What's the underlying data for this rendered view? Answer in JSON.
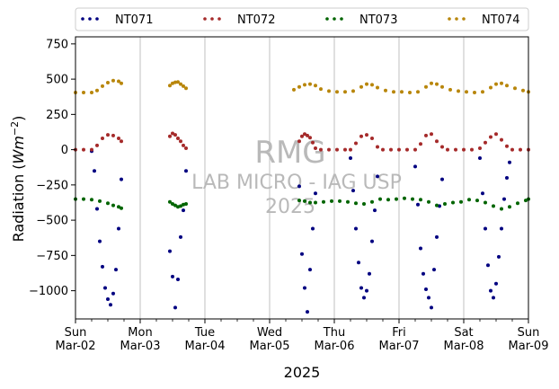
{
  "chart_data": {
    "type": "scatter",
    "xlabel": "2025",
    "ylabel": "Radiation (",
    "ylabel_unit": "Wm",
    "ylabel_exp": "−2",
    "ylabel_close": ")",
    "xlim": [
      "2025-03-02",
      "2025-03-09"
    ],
    "ylim": [
      -1200,
      800
    ],
    "yticks": [
      -1000,
      -750,
      -500,
      -250,
      0,
      250,
      500,
      750
    ],
    "ytick_labels": [
      "−1000",
      "−750",
      "−500",
      "−250",
      "0",
      "250",
      "500",
      "750"
    ],
    "xticks": [
      {
        "date": "2025-03-02",
        "day": "Sun",
        "label": "Mar-02"
      },
      {
        "date": "2025-03-03",
        "day": "Mon",
        "label": "Mar-03"
      },
      {
        "date": "2025-03-04",
        "day": "Tue",
        "label": "Mar-04"
      },
      {
        "date": "2025-03-05",
        "day": "Wed",
        "label": "Mar-05"
      },
      {
        "date": "2025-03-06",
        "day": "Thu",
        "label": "Mar-06"
      },
      {
        "date": "2025-03-07",
        "day": "Fri",
        "label": "Mar-07"
      },
      {
        "date": "2025-03-08",
        "day": "Sat",
        "label": "Mar-08"
      },
      {
        "date": "2025-03-09",
        "day": "Sun",
        "label": "Mar-09"
      }
    ],
    "grid": "vertical",
    "legend_position": "top, outside, horizontal",
    "watermark": [
      "RMG",
      "LAB MICRO - IAG USP",
      "2025"
    ],
    "series": [
      {
        "name": "NT071",
        "color": "#000080",
        "points": [
          [
            "2025-03-02 06:00",
            -10
          ],
          [
            "2025-03-02 07:00",
            -150
          ],
          [
            "2025-03-02 08:00",
            -420
          ],
          [
            "2025-03-02 09:00",
            -650
          ],
          [
            "2025-03-02 10:00",
            -830
          ],
          [
            "2025-03-02 11:00",
            -980
          ],
          [
            "2025-03-02 12:00",
            -1060
          ],
          [
            "2025-03-02 13:00",
            -1100
          ],
          [
            "2025-03-02 14:00",
            -1020
          ],
          [
            "2025-03-02 15:00",
            -850
          ],
          [
            "2025-03-02 16:00",
            -560
          ],
          [
            "2025-03-02 17:00",
            -210
          ],
          [
            "2025-03-03 11:00",
            -720
          ],
          [
            "2025-03-03 12:00",
            -900
          ],
          [
            "2025-03-03 13:00",
            -1120
          ],
          [
            "2025-03-03 14:00",
            -920
          ],
          [
            "2025-03-03 15:00",
            -620
          ],
          [
            "2025-03-03 16:00",
            -430
          ],
          [
            "2025-03-03 17:00",
            -150
          ],
          [
            "2025-03-05 11:00",
            -260
          ],
          [
            "2025-03-05 12:00",
            -740
          ],
          [
            "2025-03-05 13:00",
            -980
          ],
          [
            "2025-03-05 14:00",
            -1150
          ],
          [
            "2025-03-05 15:00",
            -850
          ],
          [
            "2025-03-05 16:00",
            -560
          ],
          [
            "2025-03-05 17:00",
            -310
          ],
          [
            "2025-03-06 06:00",
            -60
          ],
          [
            "2025-03-06 07:00",
            -290
          ],
          [
            "2025-03-06 08:00",
            -560
          ],
          [
            "2025-03-06 09:00",
            -800
          ],
          [
            "2025-03-06 10:00",
            -980
          ],
          [
            "2025-03-06 11:00",
            -1050
          ],
          [
            "2025-03-06 12:00",
            -1000
          ],
          [
            "2025-03-06 13:00",
            -880
          ],
          [
            "2025-03-06 14:00",
            -650
          ],
          [
            "2025-03-06 15:00",
            -430
          ],
          [
            "2025-03-06 16:00",
            -190
          ],
          [
            "2025-03-07 06:00",
            -120
          ],
          [
            "2025-03-07 07:00",
            -390
          ],
          [
            "2025-03-07 08:00",
            -700
          ],
          [
            "2025-03-07 09:00",
            -880
          ],
          [
            "2025-03-07 10:00",
            -990
          ],
          [
            "2025-03-07 11:00",
            -1050
          ],
          [
            "2025-03-07 12:00",
            -1120
          ],
          [
            "2025-03-07 13:00",
            -850
          ],
          [
            "2025-03-07 14:00",
            -620
          ],
          [
            "2025-03-07 15:00",
            -400
          ],
          [
            "2025-03-07 16:00",
            -210
          ],
          [
            "2025-03-08 06:00",
            -60
          ],
          [
            "2025-03-08 07:00",
            -310
          ],
          [
            "2025-03-08 08:00",
            -560
          ],
          [
            "2025-03-08 09:00",
            -820
          ],
          [
            "2025-03-08 10:00",
            -1000
          ],
          [
            "2025-03-08 11:00",
            -1050
          ],
          [
            "2025-03-08 12:00",
            -950
          ],
          [
            "2025-03-08 13:00",
            -760
          ],
          [
            "2025-03-08 14:00",
            -560
          ],
          [
            "2025-03-08 15:00",
            -350
          ],
          [
            "2025-03-08 16:00",
            -200
          ],
          [
            "2025-03-08 17:00",
            -90
          ]
        ]
      },
      {
        "name": "NT072",
        "color": "#a52a2a",
        "points": [
          [
            "2025-03-02 00:00",
            0
          ],
          [
            "2025-03-02 03:00",
            0
          ],
          [
            "2025-03-02 06:00",
            0
          ],
          [
            "2025-03-02 08:00",
            30
          ],
          [
            "2025-03-02 10:00",
            80
          ],
          [
            "2025-03-02 12:00",
            105
          ],
          [
            "2025-03-02 14:00",
            100
          ],
          [
            "2025-03-02 16:00",
            80
          ],
          [
            "2025-03-02 17:00",
            60
          ],
          [
            "2025-03-03 11:00",
            95
          ],
          [
            "2025-03-03 12:00",
            115
          ],
          [
            "2025-03-03 13:00",
            105
          ],
          [
            "2025-03-03 14:00",
            80
          ],
          [
            "2025-03-03 15:00",
            60
          ],
          [
            "2025-03-03 16:00",
            30
          ],
          [
            "2025-03-03 17:00",
            10
          ],
          [
            "2025-03-05 11:00",
            60
          ],
          [
            "2025-03-05 12:00",
            95
          ],
          [
            "2025-03-05 13:00",
            110
          ],
          [
            "2025-03-05 14:00",
            100
          ],
          [
            "2025-03-05 15:00",
            85
          ],
          [
            "2025-03-05 16:00",
            50
          ],
          [
            "2025-03-05 17:00",
            10
          ],
          [
            "2025-03-05 19:00",
            0
          ],
          [
            "2025-03-05 22:00",
            0
          ],
          [
            "2025-03-06 01:00",
            0
          ],
          [
            "2025-03-06 04:00",
            0
          ],
          [
            "2025-03-06 06:00",
            0
          ],
          [
            "2025-03-06 08:00",
            45
          ],
          [
            "2025-03-06 10:00",
            95
          ],
          [
            "2025-03-06 12:00",
            105
          ],
          [
            "2025-03-06 14:00",
            80
          ],
          [
            "2025-03-06 16:00",
            20
          ],
          [
            "2025-03-06 18:00",
            0
          ],
          [
            "2025-03-06 21:00",
            0
          ],
          [
            "2025-03-07 00:00",
            0
          ],
          [
            "2025-03-07 03:00",
            0
          ],
          [
            "2025-03-07 06:00",
            0
          ],
          [
            "2025-03-07 08:00",
            40
          ],
          [
            "2025-03-07 10:00",
            100
          ],
          [
            "2025-03-07 12:00",
            110
          ],
          [
            "2025-03-07 14:00",
            60
          ],
          [
            "2025-03-07 16:00",
            20
          ],
          [
            "2025-03-07 18:00",
            0
          ],
          [
            "2025-03-07 21:00",
            0
          ],
          [
            "2025-03-08 00:00",
            0
          ],
          [
            "2025-03-08 03:00",
            0
          ],
          [
            "2025-03-08 06:00",
            10
          ],
          [
            "2025-03-08 08:00",
            50
          ],
          [
            "2025-03-08 10:00",
            90
          ],
          [
            "2025-03-08 12:00",
            110
          ],
          [
            "2025-03-08 14:00",
            70
          ],
          [
            "2025-03-08 16:00",
            25
          ],
          [
            "2025-03-08 18:00",
            0
          ],
          [
            "2025-03-08 21:00",
            0
          ],
          [
            "2025-03-09 00:00",
            0
          ]
        ]
      },
      {
        "name": "NT073",
        "color": "#006400",
        "points": [
          [
            "2025-03-02 00:00",
            -350
          ],
          [
            "2025-03-02 03:00",
            -350
          ],
          [
            "2025-03-02 06:00",
            -355
          ],
          [
            "2025-03-02 09:00",
            -365
          ],
          [
            "2025-03-02 12:00",
            -380
          ],
          [
            "2025-03-02 14:00",
            -395
          ],
          [
            "2025-03-02 16:00",
            -405
          ],
          [
            "2025-03-02 17:00",
            -415
          ],
          [
            "2025-03-03 11:00",
            -370
          ],
          [
            "2025-03-03 12:00",
            -385
          ],
          [
            "2025-03-03 13:00",
            -395
          ],
          [
            "2025-03-03 14:00",
            -405
          ],
          [
            "2025-03-03 15:00",
            -400
          ],
          [
            "2025-03-03 16:00",
            -390
          ],
          [
            "2025-03-03 17:00",
            -385
          ],
          [
            "2025-03-05 11:00",
            -360
          ],
          [
            "2025-03-05 13:00",
            -365
          ],
          [
            "2025-03-05 15:00",
            -375
          ],
          [
            "2025-03-05 17:00",
            -375
          ],
          [
            "2025-03-05 20:00",
            -370
          ],
          [
            "2025-03-05 23:00",
            -365
          ],
          [
            "2025-03-06 02:00",
            -365
          ],
          [
            "2025-03-06 05:00",
            -370
          ],
          [
            "2025-03-06 08:00",
            -380
          ],
          [
            "2025-03-06 11:00",
            -385
          ],
          [
            "2025-03-06 14:00",
            -370
          ],
          [
            "2025-03-06 17:00",
            -350
          ],
          [
            "2025-03-06 20:00",
            -355
          ],
          [
            "2025-03-06 23:00",
            -350
          ],
          [
            "2025-03-07 02:00",
            -345
          ],
          [
            "2025-03-07 05:00",
            -350
          ],
          [
            "2025-03-07 08:00",
            -355
          ],
          [
            "2025-03-07 11:00",
            -370
          ],
          [
            "2025-03-07 14:00",
            -395
          ],
          [
            "2025-03-07 17:00",
            -385
          ],
          [
            "2025-03-07 20:00",
            -375
          ],
          [
            "2025-03-07 23:00",
            -370
          ],
          [
            "2025-03-08 02:00",
            -355
          ],
          [
            "2025-03-08 05:00",
            -360
          ],
          [
            "2025-03-08 08:00",
            -375
          ],
          [
            "2025-03-08 11:00",
            -400
          ],
          [
            "2025-03-08 14:00",
            -420
          ],
          [
            "2025-03-08 17:00",
            -405
          ],
          [
            "2025-03-08 20:00",
            -380
          ],
          [
            "2025-03-08 23:00",
            -360
          ],
          [
            "2025-03-09 00:00",
            -350
          ]
        ]
      },
      {
        "name": "NT074",
        "color": "#b8860b",
        "points": [
          [
            "2025-03-02 00:00",
            405
          ],
          [
            "2025-03-02 03:00",
            405
          ],
          [
            "2025-03-02 06:00",
            405
          ],
          [
            "2025-03-02 08:00",
            420
          ],
          [
            "2025-03-02 10:00",
            450
          ],
          [
            "2025-03-02 12:00",
            475
          ],
          [
            "2025-03-02 14:00",
            490
          ],
          [
            "2025-03-02 16:00",
            485
          ],
          [
            "2025-03-02 17:00",
            470
          ],
          [
            "2025-03-03 11:00",
            455
          ],
          [
            "2025-03-03 12:00",
            470
          ],
          [
            "2025-03-03 13:00",
            478
          ],
          [
            "2025-03-03 14:00",
            480
          ],
          [
            "2025-03-03 15:00",
            465
          ],
          [
            "2025-03-03 16:00",
            450
          ],
          [
            "2025-03-03 17:00",
            435
          ],
          [
            "2025-03-05 09:00",
            425
          ],
          [
            "2025-03-05 11:00",
            445
          ],
          [
            "2025-03-05 13:00",
            460
          ],
          [
            "2025-03-05 15:00",
            465
          ],
          [
            "2025-03-05 17:00",
            455
          ],
          [
            "2025-03-05 19:00",
            430
          ],
          [
            "2025-03-05 22:00",
            415
          ],
          [
            "2025-03-06 01:00",
            410
          ],
          [
            "2025-03-06 04:00",
            410
          ],
          [
            "2025-03-06 07:00",
            415
          ],
          [
            "2025-03-06 10:00",
            445
          ],
          [
            "2025-03-06 12:00",
            465
          ],
          [
            "2025-03-06 14:00",
            460
          ],
          [
            "2025-03-06 16:00",
            440
          ],
          [
            "2025-03-06 19:00",
            420
          ],
          [
            "2025-03-06 22:00",
            410
          ],
          [
            "2025-03-07 01:00",
            410
          ],
          [
            "2025-03-07 04:00",
            405
          ],
          [
            "2025-03-07 07:00",
            410
          ],
          [
            "2025-03-07 10:00",
            445
          ],
          [
            "2025-03-07 12:00",
            470
          ],
          [
            "2025-03-07 14:00",
            465
          ],
          [
            "2025-03-07 16:00",
            445
          ],
          [
            "2025-03-07 19:00",
            425
          ],
          [
            "2025-03-07 22:00",
            415
          ],
          [
            "2025-03-08 01:00",
            410
          ],
          [
            "2025-03-08 04:00",
            405
          ],
          [
            "2025-03-08 07:00",
            410
          ],
          [
            "2025-03-08 10:00",
            440
          ],
          [
            "2025-03-08 12:00",
            465
          ],
          [
            "2025-03-08 14:00",
            470
          ],
          [
            "2025-03-08 16:00",
            455
          ],
          [
            "2025-03-08 19:00",
            435
          ],
          [
            "2025-03-08 22:00",
            420
          ],
          [
            "2025-03-09 00:00",
            410
          ]
        ]
      }
    ]
  }
}
